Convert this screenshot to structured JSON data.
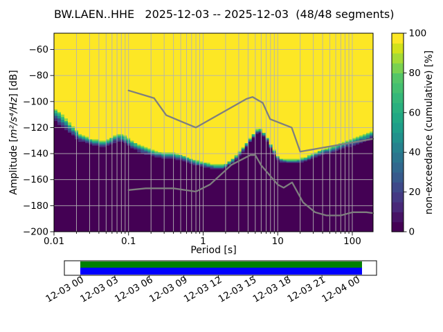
{
  "title": "BW.LAEN..HHE   2025-12-03 -- 2025-12-03  (48/48 segments)",
  "axes": {
    "xlabel": "Period [s]",
    "ylabel_prefix": "Amplitude [",
    "ylabel_math": "m²/s⁴/Hz",
    "ylabel_suffix": "] [dB]",
    "x_ticks": [
      0.01,
      0.1,
      1,
      10,
      100
    ],
    "x_tick_labels": [
      "0.01",
      "0.1",
      "1",
      "10",
      "100"
    ],
    "y_ticks": [
      -60,
      -80,
      -100,
      -120,
      -140,
      -160,
      -180,
      -200
    ],
    "y_tick_labels": [
      "−60",
      "−80",
      "−100",
      "−120",
      "−140",
      "−160",
      "−180",
      "−200"
    ],
    "grid_color": "#b3b3b3",
    "frame_color": "#000000"
  },
  "colorbar": {
    "label": "non-exceedance (cumulative) [%]",
    "ticks": [
      0,
      20,
      40,
      60,
      80,
      100
    ],
    "cmap": "viridis",
    "band_colors": [
      "#440154",
      "#471365",
      "#482878",
      "#443983",
      "#3e4989",
      "#375a8c",
      "#31688e",
      "#2b758e",
      "#26828e",
      "#21918c",
      "#1f9e89",
      "#22a884",
      "#2ab07f",
      "#35b779",
      "#44bf70",
      "#54c568",
      "#7ad151",
      "#a5db36",
      "#d2e21b",
      "#fde725"
    ]
  },
  "chart_data": {
    "type": "heatmap",
    "description": "PPSD cumulative (non-exceedance) plot: yellow = 100% non-exceedance, dark purple = 0%, narrow viridis transition band marks the power spectral density distribution versus period.",
    "title": "BW.LAEN..HHE   2025-12-03 -- 2025-12-03  (48/48 segments)",
    "xlabel": "Period [s]",
    "ylabel": "Amplitude [m²/s⁴/Hz] [dB]",
    "colorbar_label": "non-exceedance (cumulative) [%]",
    "xscale": "log",
    "xlim": [
      0.01,
      190
    ],
    "ylim": [
      -200,
      -47.5
    ],
    "grid": true,
    "legend": false,
    "heatmap_colors": {
      "high_100pct": "#fde725",
      "low_0pct": "#440154",
      "transition": [
        {
          "f": 1.0,
          "color": "#472d7b"
        },
        {
          "f": 0.8,
          "color": "#3b528b"
        },
        {
          "f": 0.58,
          "color": "#21918c"
        },
        {
          "f": 0.36,
          "color": "#35b779"
        },
        {
          "f": 0.16,
          "color": "#90d743"
        }
      ]
    },
    "cumulative_boundary": {
      "periods_s": [
        0.01,
        0.012,
        0.016,
        0.022,
        0.032,
        0.046,
        0.055,
        0.07,
        0.085,
        0.11,
        0.15,
        0.22,
        0.3,
        0.4,
        0.55,
        0.75,
        1.0,
        1.4,
        1.9,
        2.6,
        3.5,
        4.5,
        5.6,
        7.0,
        8.5,
        10.5,
        14,
        18,
        24,
        35,
        55,
        85,
        120,
        160,
        190
      ],
      "db_at_100pct": [
        -105,
        -108,
        -116,
        -124.5,
        -129,
        -130,
        -128.5,
        -125,
        -125.5,
        -130,
        -134,
        -137.5,
        -139.5,
        -139,
        -141.5,
        -144.5,
        -146.5,
        -148.5,
        -148.5,
        -143,
        -134.5,
        -126,
        -119.5,
        -126,
        -135,
        -143.5,
        -144.5,
        -144.5,
        -142.5,
        -138,
        -134,
        -130,
        -127,
        -124.5,
        -122
      ],
      "db_at_0pct": [
        -114,
        -118,
        -124,
        -130.5,
        -133.5,
        -135.5,
        -134,
        -130.5,
        -131.5,
        -136,
        -139.5,
        -142.5,
        -144,
        -144,
        -146,
        -148.5,
        -150.5,
        -152,
        -152,
        -146.5,
        -138,
        -129.5,
        -122.5,
        -129,
        -138.5,
        -146.5,
        -147.5,
        -147.5,
        -146,
        -142,
        -139,
        -135.5,
        -132.5,
        -130,
        -128
      ]
    },
    "noise_models": {
      "color": "#7f7f7f",
      "nhnm": {
        "name": "Peterson New High Noise Model",
        "periods_s": [
          0.1,
          0.22,
          0.32,
          0.8,
          3.8,
          4.6,
          6.3,
          7.9,
          15.4,
          20,
          190
        ],
        "db": [
          -91.5,
          -97.4,
          -110.5,
          -120,
          -98,
          -96.5,
          -101,
          -113.5,
          -120,
          -138.5,
          -128.7
        ]
      },
      "nlnm": {
        "name": "Peterson New Low Noise Model",
        "periods_s": [
          0.1,
          0.17,
          0.4,
          0.8,
          1.24,
          2.4,
          4.3,
          5.0,
          6.0,
          10,
          12,
          15.6,
          21.9,
          31.6,
          45,
          70,
          101,
          154,
          190
        ],
        "db": [
          -168,
          -166.7,
          -166.7,
          -169.2,
          -163.7,
          -148.6,
          -141.1,
          -141.1,
          -149,
          -163.8,
          -166.2,
          -162.1,
          -177.5,
          -185,
          -187.5,
          -187.5,
          -185,
          -185,
          -185.7
        ]
      }
    }
  },
  "timeline": {
    "tick_labels": [
      "12-03 00",
      "12-03 03",
      "12-03 06",
      "12-03 09",
      "12-03 12",
      "12-03 15",
      "12-03 18",
      "12-03 21",
      "12-04 00"
    ],
    "coverage": {
      "segments_color": "#008000",
      "data_color": "#0000ff",
      "background": "#ffffff",
      "outline": "#000000"
    }
  }
}
